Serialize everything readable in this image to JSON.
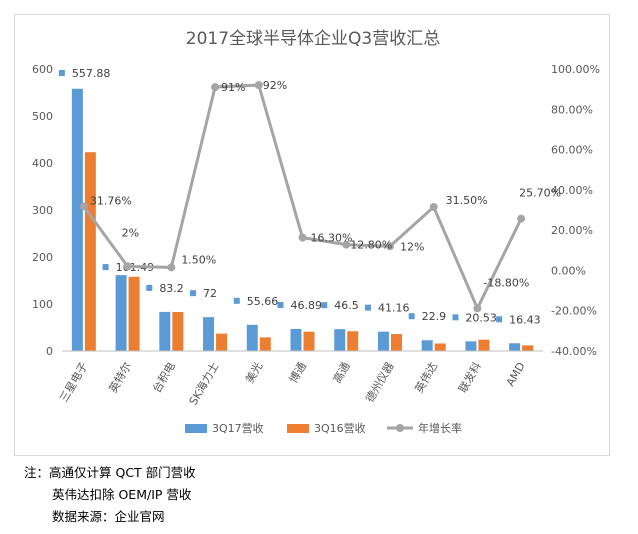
{
  "chart_data": {
    "type": "bar",
    "title": "2017全球半导体企业Q3营收汇总",
    "categories": [
      "三星电子",
      "英特尔",
      "台积电",
      "SK海力士",
      "美光",
      "博通",
      "高通",
      "德州仪器",
      "英伟达",
      "联发科",
      "AMD"
    ],
    "series": [
      {
        "name": "3Q17营收",
        "type": "bar",
        "color": "#5b9bd5",
        "values": [
          557.88,
          161.49,
          83.2,
          72,
          55.66,
          46.89,
          46.5,
          41.16,
          22.9,
          20.53,
          16.43
        ],
        "labels": [
          "557.88",
          "161.49",
          "83.2",
          "72",
          "55.66",
          "46.89",
          "46.5",
          "41.16",
          "22.9",
          "20.53",
          "16.43"
        ]
      },
      {
        "name": "3Q16营收",
        "type": "bar",
        "color": "#ed7d31",
        "values": [
          423,
          158,
          83,
          37,
          29,
          41,
          42,
          36,
          16,
          24,
          12
        ]
      },
      {
        "name": "年增长率",
        "type": "line",
        "axis": "right",
        "color": "#a5a5a5",
        "values": [
          31.76,
          2,
          1.5,
          91,
          92,
          16.3,
          12.8,
          12,
          31.5,
          -18.8,
          25.7
        ],
        "labels": [
          "31.76%",
          "2%",
          "1.50%",
          "91%",
          "92%",
          "16.30%",
          "12.80%",
          "12%",
          "31.50%",
          "-18.80%",
          "25.70%"
        ]
      }
    ],
    "ylim": [
      0,
      600
    ],
    "y_ticks": [
      "0",
      "100",
      "200",
      "300",
      "400",
      "500",
      "600"
    ],
    "y2lim": [
      -40,
      100
    ],
    "y2_ticks": [
      "-40.00%",
      "-20.00%",
      "0.00%",
      "20.00%",
      "40.00%",
      "60.00%",
      "80.00%",
      "100.00%"
    ],
    "grid": false,
    "legend": "bottom"
  },
  "notes": {
    "line1": "注：高通仅计算 QCT 部门营收",
    "line2": "英伟达扣除 OEM/IP 营收",
    "line3": "数据来源：企业官网"
  }
}
